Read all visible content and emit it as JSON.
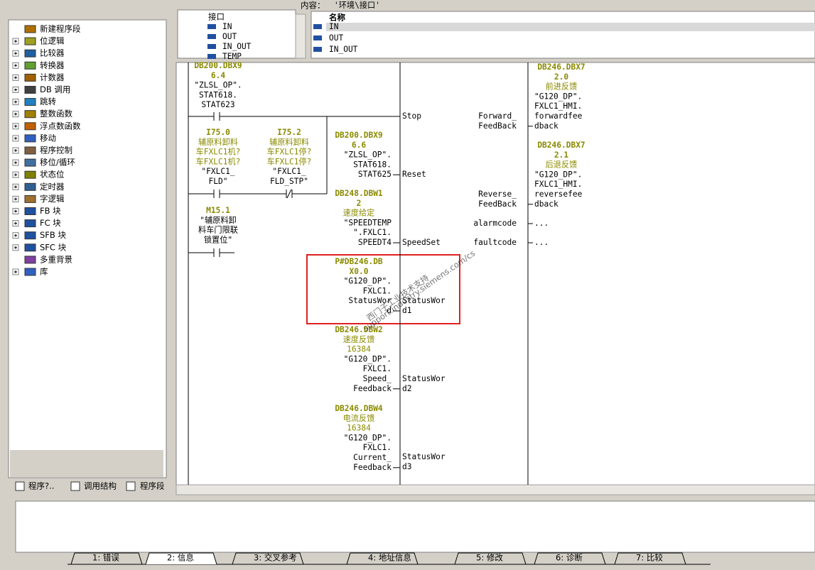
{
  "tree": {
    "items": [
      "新建程序段",
      "位逻辑",
      "比较器",
      "转换器",
      "计数器",
      "DB 调用",
      "跳转",
      "整数函数",
      "浮点数函数",
      "移动",
      "程序控制",
      "移位/循环",
      "状态位",
      "定时器",
      "字逻辑",
      "FB 块",
      "FC 块",
      "SFB 块",
      "SFC 块",
      "多重背景",
      "库"
    ]
  },
  "left_tabs": [
    "程序?..",
    "调用结构",
    "程序段"
  ],
  "interface": {
    "label": "内容：",
    "path": "'环境\\接口'",
    "root": "接口",
    "items": [
      "IN",
      "OUT",
      "IN_OUT",
      "TEMP"
    ],
    "column": "名称",
    "rows": [
      "IN",
      "OUT",
      "IN_OUT"
    ]
  },
  "ladder": {
    "contacts": [
      [
        "DB200.DBX9",
        "6.4",
        "\"ZLSL_OP\".",
        "STAT618.",
        "STAT623"
      ],
      [
        "I75.0",
        "辅原料卸料",
        "车FXLC1机?",
        "车FXLC1机?",
        "\"FXLC1_",
        "FLD\""
      ],
      [
        "I75.2",
        "辅原料卸料",
        "车FXLC1停?",
        "车FXLC1停?",
        "\"FXLC1_",
        "FLD_STP\""
      ],
      [
        "M15.1",
        "\"辅原料卸",
        "料车门限联",
        "锁置位\""
      ]
    ],
    "inputs": [
      [
        "DB200.DBX9",
        "6.6",
        "\"ZLSL_OP\".",
        "STAT618.",
        "STAT625"
      ],
      [
        "DB248.DBW1",
        "2",
        "速度给定",
        "\"SPEEDTEMP",
        "\".FXLC1.",
        "SPEEDT4"
      ],
      [
        "P#DB246.DB",
        "X0.0",
        "\"G120_DP\".",
        "FXLC1.",
        "StatusWor",
        "d"
      ],
      [
        "DB246.DBW2",
        "速度反馈",
        "16384",
        "\"G120_DP\".",
        "FXLC1.",
        "Speed_",
        "Feedback"
      ],
      [
        "DB246.DBW4",
        "电流反馈",
        "16384",
        "\"G120_DP\".",
        "FXLC1.",
        "Current_",
        "Feedback"
      ]
    ],
    "pins_in": [
      [
        "Stop"
      ],
      [
        "Reset"
      ],
      [
        "SpeedSet"
      ],
      [
        "StatusWor",
        "d1"
      ],
      [
        "StatusWor",
        "d2"
      ],
      [
        "StatusWor",
        "d3"
      ]
    ],
    "pins_out": [
      [
        "Forward_",
        "FeedBack"
      ],
      [
        "Reverse_",
        "FeedBack"
      ],
      [
        "alarmcode"
      ],
      [
        "faultcode"
      ]
    ],
    "outputs": [
      [
        "DB246.DBX7",
        "2.0",
        "前进反馈",
        "\"G120_DP\".",
        "FXLC1_HMI.",
        "forwardfee",
        "dback"
      ],
      [
        "DB246.DBX7",
        "2.1",
        "后退反馈",
        "\"G120_DP\".",
        "FXLC1_HMI.",
        "reversefee",
        "dback"
      ],
      [
        "..."
      ],
      [
        "..."
      ]
    ]
  },
  "watermark": {
    "cn": "西门子工业技术支持",
    "url": "support.industry.siemens.com/cs"
  },
  "message_tabs": [
    "1: 错误",
    "2: 信息",
    "3: 交叉参考",
    "4: 地址信息",
    "5: 修改",
    "6: 诊断",
    "7: 比较"
  ]
}
